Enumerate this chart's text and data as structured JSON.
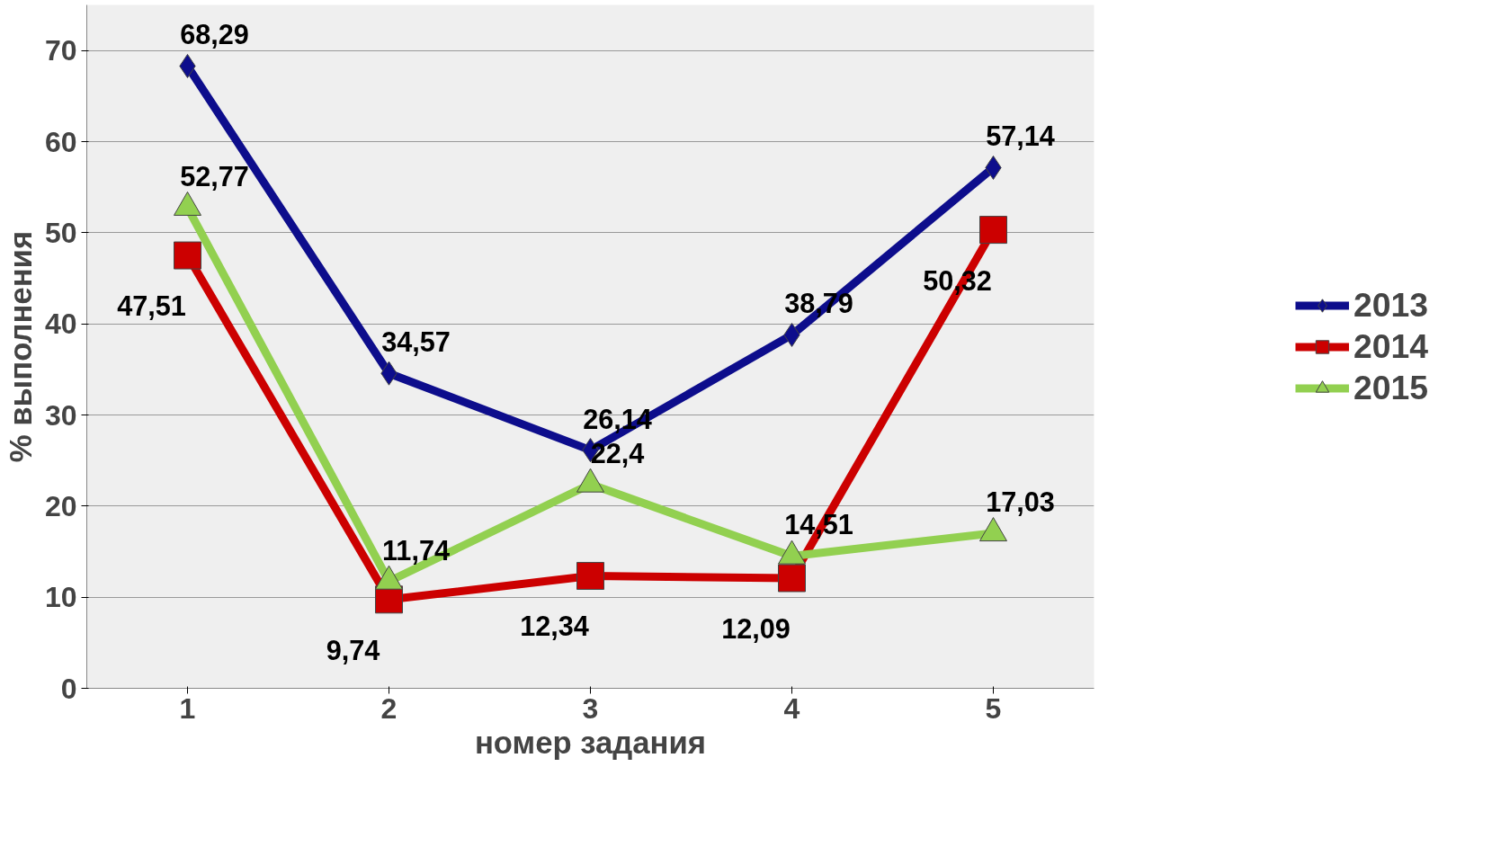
{
  "chart_data": {
    "type": "line",
    "xlabel": "номер задания",
    "ylabel": "% выполнения",
    "categories": [
      "1",
      "2",
      "3",
      "4",
      "5"
    ],
    "series": [
      {
        "name": "2013",
        "color": "#0d0d8c",
        "marker": "diamond",
        "values": [
          68.29,
          34.57,
          26.14,
          38.79,
          57.14
        ],
        "value_labels": [
          "68,29",
          "34,57",
          "26,14",
          "38,79",
          "57,14"
        ]
      },
      {
        "name": "2014",
        "color": "#cc0000",
        "marker": "square",
        "values": [
          47.51,
          9.74,
          12.34,
          12.09,
          50.32
        ],
        "value_labels": [
          "47,51",
          "9,74",
          "12,34",
          "12,09",
          "50,32"
        ]
      },
      {
        "name": "2015",
        "color": "#92d050",
        "marker": "triangle",
        "values": [
          52.77,
          11.74,
          22.4,
          14.51,
          17.03
        ],
        "value_labels": [
          "52,77",
          "11,74",
          "22,4",
          "14,51",
          "17,03"
        ]
      }
    ],
    "ylim": [
      0,
      75
    ],
    "yticks": [
      0,
      10,
      20,
      30,
      40,
      50,
      60,
      70
    ],
    "grid": "y",
    "legend": "right",
    "line_style": "solid"
  }
}
